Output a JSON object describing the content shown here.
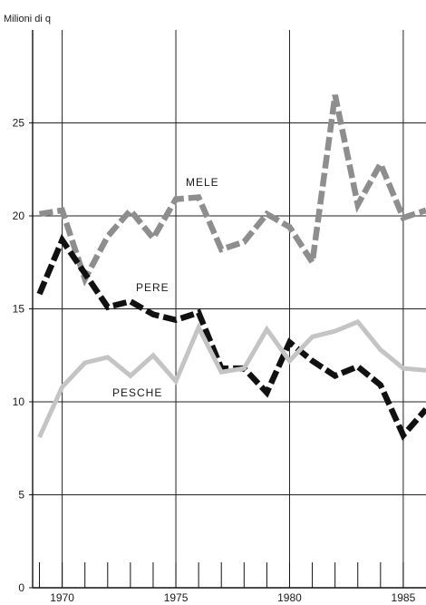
{
  "chart_data": {
    "type": "line",
    "ylabel": "Milioni di q",
    "xlim": [
      1968.7,
      1986
    ],
    "ylim": [
      0,
      30
    ],
    "x_ticks": [
      1970,
      1975,
      1980,
      1985
    ],
    "x_tick_labels": [
      "1970",
      "1975",
      "1980",
      "1985"
    ],
    "y_ticks": [
      0,
      5,
      10,
      15,
      20,
      25
    ],
    "y_tick_labels": [
      "0",
      "5",
      "10",
      "15",
      "20",
      "25"
    ],
    "grid": true,
    "legend": "none",
    "series": [
      {
        "name": "MELE",
        "color": "#8e8e8e",
        "style": "dashed-thick",
        "x": [
          1969,
          1970,
          1971,
          1972,
          1973,
          1974,
          1975,
          1976,
          1977,
          1978,
          1979,
          1980,
          1981,
          1982,
          1983,
          1984,
          1985,
          1986
        ],
        "values": [
          20.1,
          20.3,
          16.6,
          18.9,
          20.3,
          18.8,
          20.9,
          21.0,
          18.2,
          18.6,
          20.1,
          19.4,
          17.5,
          26.5,
          20.6,
          22.8,
          19.9,
          20.3
        ]
      },
      {
        "name": "PERE",
        "color": "#111111",
        "style": "dashed-thick",
        "x": [
          1969,
          1970,
          1971,
          1972,
          1973,
          1974,
          1975,
          1976,
          1977,
          1978,
          1979,
          1980,
          1981,
          1982,
          1983,
          1984,
          1985,
          1986
        ],
        "values": [
          15.8,
          18.7,
          16.9,
          15.1,
          15.4,
          14.7,
          14.4,
          14.8,
          11.8,
          11.8,
          10.5,
          13.2,
          12.2,
          11.4,
          11.9,
          10.9,
          8.2,
          9.6
        ]
      },
      {
        "name": "PESCHE",
        "color": "#c4c4c4",
        "style": "solid-thick",
        "x": [
          1969,
          1970,
          1971,
          1972,
          1973,
          1974,
          1975,
          1976,
          1977,
          1978,
          1979,
          1980,
          1981,
          1982,
          1983,
          1984,
          1985,
          1986
        ],
        "values": [
          8.1,
          10.8,
          12.1,
          12.4,
          11.4,
          12.5,
          11.1,
          14.0,
          11.6,
          11.8,
          13.9,
          12.2,
          13.5,
          13.8,
          14.3,
          12.8,
          11.8,
          11.7
        ]
      }
    ]
  }
}
